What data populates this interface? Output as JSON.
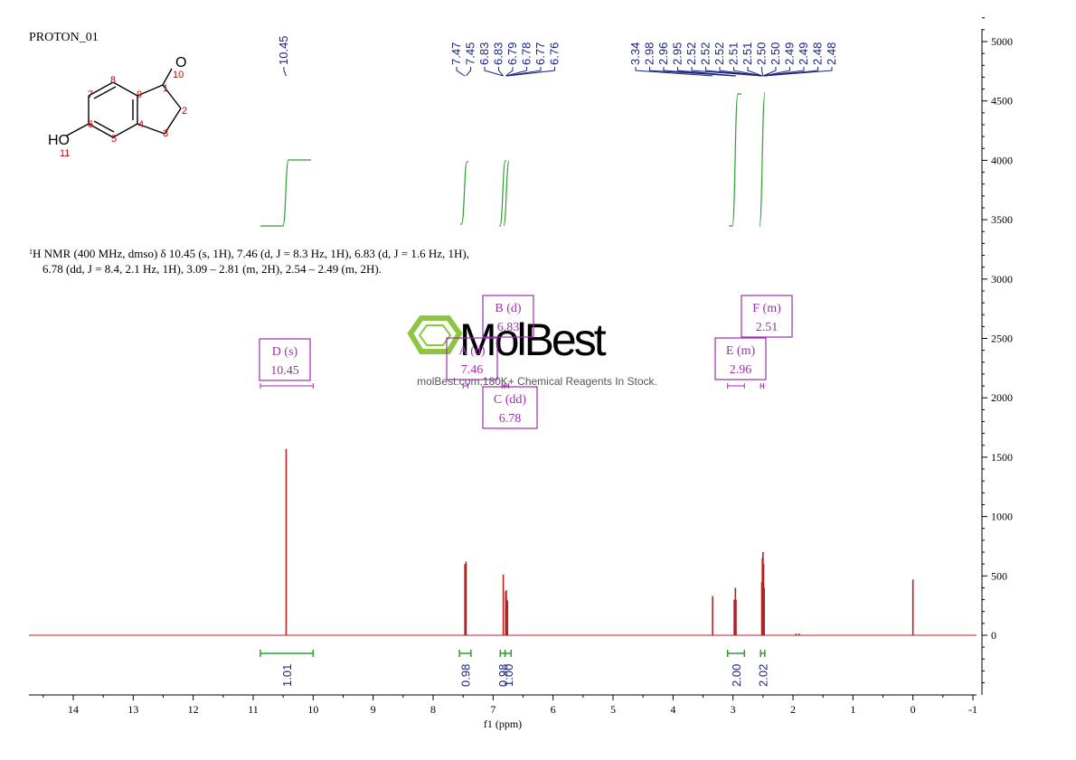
{
  "spectrum_id": "PROTON_01",
  "description_line1": "H NMR (400 MHz, dmso) δ 10.45 (s, 1H), 7.46 (d, J = 8.3 Hz, 1H), 6.83 (d, J = 1.6 Hz, 1H),",
  "description_sup": "1",
  "description_line2": "6.78 (dd, J = 8.4, 2.1 Hz, 1H), 3.09 – 2.81 (m, 2H), 2.54 – 2.49 (m, 2H).",
  "watermark": {
    "brand": "MolBest",
    "tagline": "molBest.com,180K+ Chemical Reagents In Stock."
  },
  "molecule": {
    "atoms": [
      {
        "label": "O",
        "number": "10"
      },
      {
        "label": "HO",
        "number": "11"
      }
    ],
    "ring_numbers": [
      "1",
      "2",
      "3",
      "4",
      "5",
      "6",
      "7",
      "8",
      "9"
    ]
  },
  "colors": {
    "spectrum": "#b22222",
    "peak_labels": "#1a237e",
    "integral": "#2e9e2e",
    "multiplet_box": "#9b2fae",
    "axis": "#000000"
  },
  "chart_data": {
    "type": "line",
    "xlabel": "f1 (ppm)",
    "xlim": [
      14.8,
      -1.0
    ],
    "x_ticks": [
      "14",
      "13",
      "12",
      "11",
      "10",
      "9",
      "8",
      "7",
      "6",
      "5",
      "4",
      "3",
      "2",
      "1",
      "0",
      "-1"
    ],
    "x_tick_values": [
      14,
      13,
      12,
      11,
      10,
      9,
      8,
      7,
      6,
      5,
      4,
      3,
      2,
      1,
      0,
      -1
    ],
    "ylim": [
      -500,
      5250
    ],
    "y_ticks": [
      "5000",
      "4500",
      "4000",
      "3500",
      "3000",
      "2500",
      "2000",
      "1500",
      "1000",
      "500",
      "0"
    ],
    "y_tick_values": [
      5000,
      4500,
      4000,
      3500,
      3000,
      2500,
      2000,
      1500,
      1000,
      500,
      0
    ],
    "peaks": [
      {
        "ppm": 10.45,
        "height": 1570
      },
      {
        "ppm": 7.47,
        "height": 600
      },
      {
        "ppm": 7.45,
        "height": 620
      },
      {
        "ppm": 6.83,
        "height": 510
      },
      {
        "ppm": 6.79,
        "height": 370
      },
      {
        "ppm": 6.78,
        "height": 380
      },
      {
        "ppm": 6.77,
        "height": 300
      },
      {
        "ppm": 6.76,
        "height": 290
      },
      {
        "ppm": 3.34,
        "height": 330
      },
      {
        "ppm": 2.98,
        "height": 300
      },
      {
        "ppm": 2.96,
        "height": 400
      },
      {
        "ppm": 2.95,
        "height": 300
      },
      {
        "ppm": 2.52,
        "height": 450
      },
      {
        "ppm": 2.51,
        "height": 650
      },
      {
        "ppm": 2.5,
        "height": 700
      },
      {
        "ppm": 2.49,
        "height": 600
      },
      {
        "ppm": 2.48,
        "height": 400
      },
      {
        "ppm": 1.95,
        "height": 15
      },
      {
        "ppm": 1.9,
        "height": 15
      },
      {
        "ppm": 0.0,
        "height": 470
      }
    ],
    "peak_labels": [
      {
        "group": 1,
        "values": [
          "10.45"
        ]
      },
      {
        "group": 2,
        "values": [
          "7.47",
          "7.45",
          "6.83",
          "6.83",
          "6.79",
          "6.78",
          "6.77",
          "6.76"
        ]
      },
      {
        "group": 3,
        "values": [
          "3.34",
          "2.98",
          "2.96",
          "2.95",
          "2.52",
          "2.52",
          "2.52",
          "2.51",
          "2.51",
          "2.50",
          "2.50",
          "2.49",
          "2.49",
          "2.48",
          "2.48"
        ]
      }
    ],
    "integrals": [
      {
        "from": 10.88,
        "to": 10.0,
        "value": "1.01"
      },
      {
        "from": 7.56,
        "to": 7.37,
        "value": "0.98"
      },
      {
        "from": 6.88,
        "to": 6.8,
        "value": "0.98"
      },
      {
        "from": 6.8,
        "to": 6.7,
        "value": "1.00"
      },
      {
        "from": 3.09,
        "to": 2.81,
        "value": "2.00"
      },
      {
        "from": 2.54,
        "to": 2.47,
        "value": "2.02"
      }
    ],
    "multiplets": [
      {
        "letter": "D",
        "kind": "(s)",
        "shift": "10.45",
        "range": [
          10.88,
          10.0
        ]
      },
      {
        "letter": "A",
        "kind": "(d)",
        "shift": "7.46",
        "range": [
          7.5,
          7.42
        ]
      },
      {
        "letter": "B",
        "kind": "(d)",
        "shift": "6.83",
        "range": [
          6.85,
          6.81
        ]
      },
      {
        "letter": "C",
        "kind": "(dd)",
        "shift": "6.78",
        "range": [
          6.81,
          6.74
        ]
      },
      {
        "letter": "E",
        "kind": "(m)",
        "shift": "2.96",
        "range": [
          3.09,
          2.81
        ]
      },
      {
        "letter": "F",
        "kind": "(m)",
        "shift": "2.51",
        "range": [
          2.54,
          2.49
        ]
      }
    ]
  }
}
